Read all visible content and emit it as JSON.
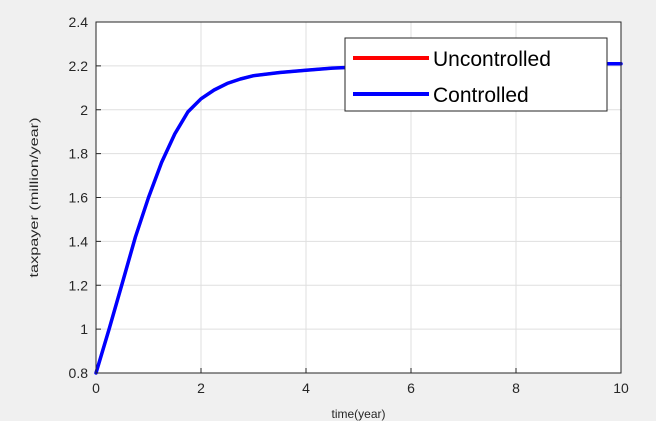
{
  "chart_data": {
    "type": "line",
    "xlabel": "time(year)",
    "ylabel": "taxpayer (million/year)",
    "xlim": [
      0,
      10
    ],
    "ylim": [
      0.8,
      2.4
    ],
    "x_ticks": [
      0,
      2,
      4,
      6,
      8,
      10
    ],
    "x_tick_labels": [
      "0",
      "2",
      "4",
      "6",
      "8",
      "10"
    ],
    "y_ticks": [
      0.8,
      1,
      1.2,
      1.4,
      1.6,
      1.8,
      2,
      2.2,
      2.4
    ],
    "y_tick_labels": [
      "0.8",
      "1",
      "1.2",
      "1.4",
      "1.6",
      "1.8",
      "2",
      "2.2",
      "2.4"
    ],
    "grid": true,
    "legend_position": "top-right",
    "x": [
      0,
      0.25,
      0.5,
      0.75,
      1.0,
      1.25,
      1.5,
      1.75,
      2.0,
      2.25,
      2.5,
      2.75,
      3.0,
      3.5,
      4.0,
      4.5,
      5.0,
      6.0,
      7.0,
      8.0,
      9.0,
      10.0
    ],
    "series": [
      {
        "name": "Uncontrolled",
        "color": "#ff0000",
        "values": [
          0.8,
          1.0,
          1.21,
          1.42,
          1.6,
          1.76,
          1.89,
          1.99,
          2.05,
          2.09,
          2.12,
          2.14,
          2.155,
          2.17,
          2.18,
          2.19,
          2.195,
          2.2,
          2.205,
          2.205,
          2.21,
          2.21
        ]
      },
      {
        "name": "Controlled",
        "color": "#0000ff",
        "values": [
          0.8,
          1.0,
          1.21,
          1.42,
          1.6,
          1.76,
          1.89,
          1.99,
          2.05,
          2.09,
          2.12,
          2.14,
          2.155,
          2.17,
          2.18,
          2.19,
          2.195,
          2.2,
          2.205,
          2.205,
          2.21,
          2.21
        ]
      }
    ]
  }
}
